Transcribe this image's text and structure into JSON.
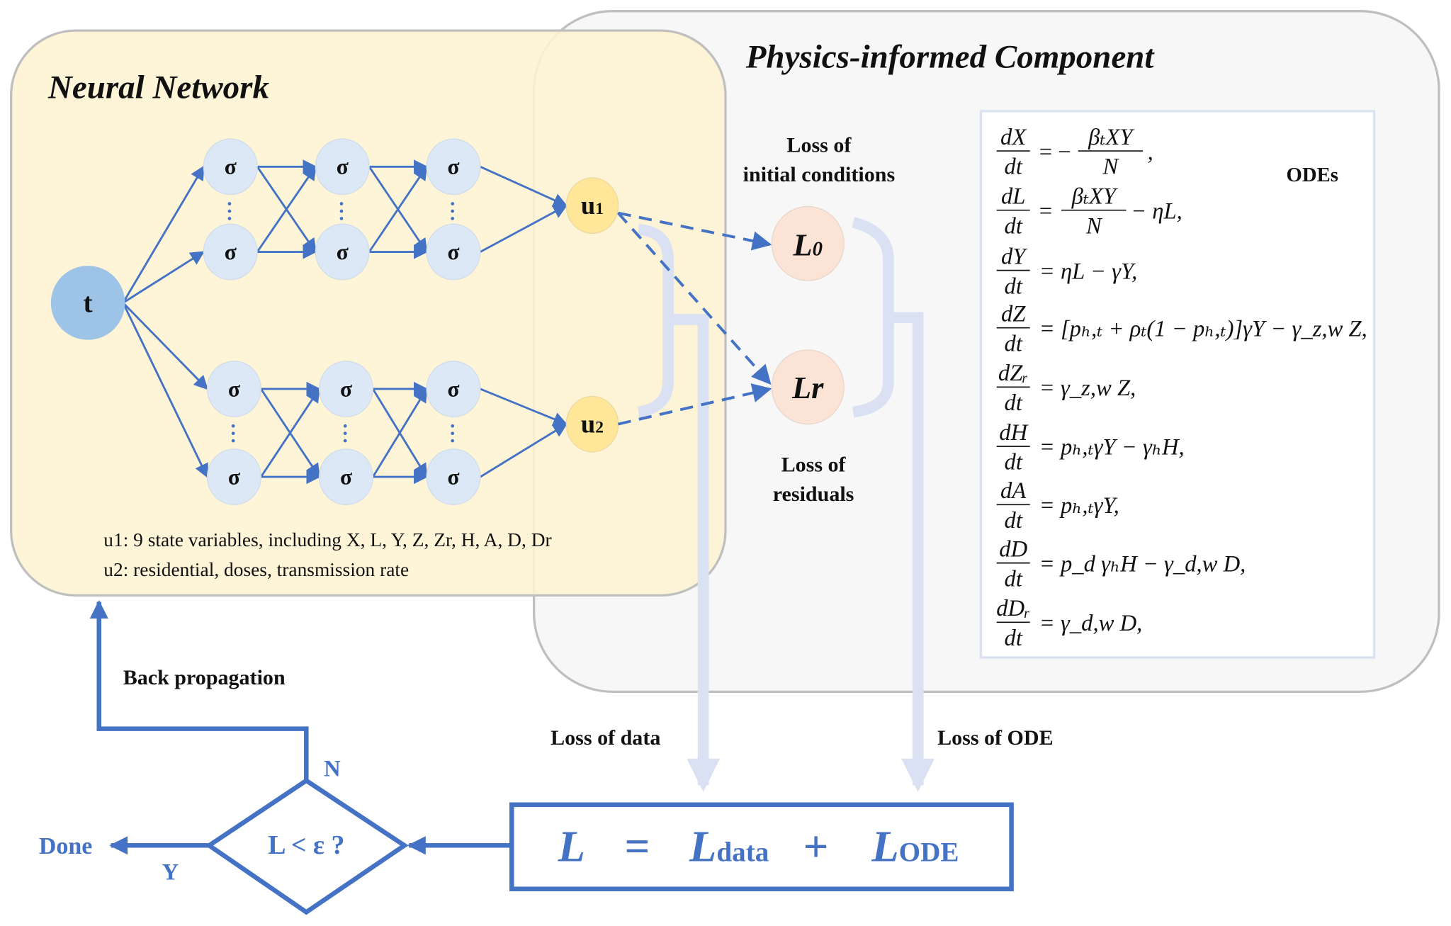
{
  "colors": {
    "accent": "#4472C4",
    "nn_background": "#FEF2D2",
    "physics_background": "#F7F7F7",
    "hidden_node": "#DCE8F5",
    "input_node": "#9DC3E6",
    "output_node": "#FFE699",
    "loss_node": "#FBE3D6",
    "loss_flow": "#D9E1F2"
  },
  "neural_network": {
    "title": "Neural Network",
    "input_label": "t",
    "hidden_label": "σ",
    "output1_main": "u",
    "output1_sub": "1",
    "output2_main": "u",
    "output2_sub": "2",
    "note1": "u1: 9 state variables, including X, L, Y, Z, Zr, H, A, D, Dr",
    "note2": "u2: residential, doses, transmission rate"
  },
  "physics": {
    "title": "Physics-informed Component",
    "loss_initial_line1": "Loss of",
    "loss_initial_line2": "initial conditions",
    "l0_main": "L",
    "l0_sub": "0",
    "lr_main": "L",
    "lr_sub": "r",
    "loss_residuals_line1": "Loss of",
    "loss_residuals_line2": "residuals",
    "odes_label": "ODEs",
    "equations": [
      {
        "num": "dX",
        "den": "dt",
        "pre": "= −",
        "fnum": "βₜXY",
        "fden": "N",
        "post": ","
      },
      {
        "num": "dL",
        "den": "dt",
        "pre": "=",
        "fnum": "βₜXY",
        "fden": "N",
        "post": "− ηL,"
      },
      {
        "num": "dY",
        "den": "dt",
        "rhs": "= ηL − γY,"
      },
      {
        "num": "dZ",
        "den": "dt",
        "rhs": "= [pₕ,ₜ + ρₜ(1 − pₕ,ₜ)]γY − γ_z,w Z,"
      },
      {
        "num": "dZᵣ",
        "den": "dt",
        "rhs": "= γ_z,w Z,"
      },
      {
        "num": "dH",
        "den": "dt",
        "rhs": "= pₕ,ₜγY − γₕH,"
      },
      {
        "num": "dA",
        "den": "dt",
        "rhs": "= pₕ,ₜγY,"
      },
      {
        "num": "dD",
        "den": "dt",
        "rhs": "= p_d γₕH − γ_d,w D,"
      },
      {
        "num": "dDᵣ",
        "den": "dt",
        "rhs": "= γ_d,w D,"
      }
    ]
  },
  "flow": {
    "loss_data_label": "Loss of data",
    "loss_ode_label": "Loss of ODE",
    "back_propagation": "Back propagation",
    "total_loss": {
      "L": "L",
      "eq": "=",
      "L_data": "L",
      "data_sub": "data",
      "plus": "+",
      "L_ode": "L",
      "ode_sub": "ODE"
    },
    "condition": "L < ε ?",
    "no_label": "N",
    "yes_label": "Y",
    "done_label": "Done"
  }
}
